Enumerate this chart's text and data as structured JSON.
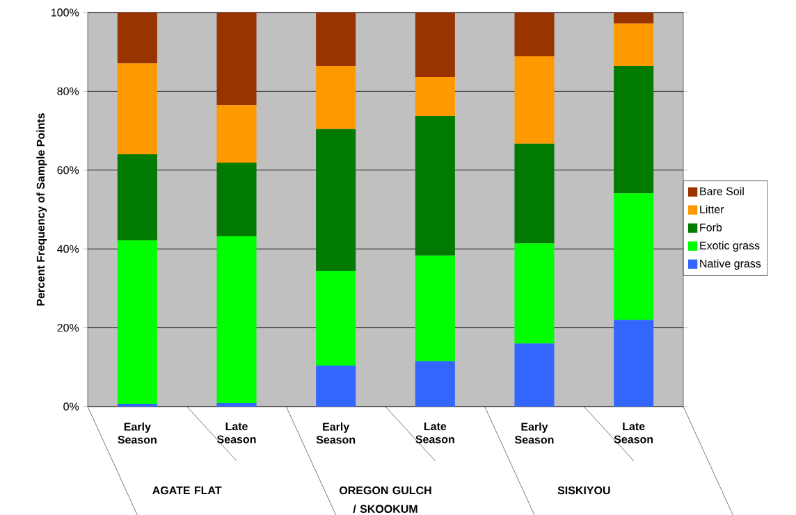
{
  "chart_data": {
    "type": "bar",
    "stacked": true,
    "ylabel": "Percent Frequency of Sample Points",
    "categories": [
      "Early Season",
      "Late Season",
      "Early Season",
      "Late Season",
      "Early Season",
      "Late Season"
    ],
    "annotations": [
      "AGATE FLAT",
      "OREGON GULCH / SKOOKUM",
      "SISKIYOU"
    ],
    "series": [
      {
        "name": "Native grass",
        "color": "#3366ff",
        "values": [
          0.7,
          0.9,
          10.4,
          11.5,
          16.0,
          22.0
        ]
      },
      {
        "name": "Exotic grass",
        "color": "#00ff00",
        "values": [
          41.5,
          42.3,
          24.0,
          26.8,
          25.4,
          32.1
        ]
      },
      {
        "name": "Forb",
        "color": "#007a00",
        "values": [
          21.8,
          18.7,
          36.0,
          35.4,
          25.3,
          32.3
        ]
      },
      {
        "name": "Litter",
        "color": "#ff9900",
        "values": [
          23.1,
          14.6,
          16.0,
          9.9,
          22.2,
          10.8
        ]
      },
      {
        "name": "Bare Soil",
        "color": "#993300",
        "values": [
          12.9,
          23.5,
          13.6,
          16.4,
          11.1,
          2.8
        ]
      }
    ],
    "ylim": [
      0,
      100
    ],
    "yticks": [
      {
        "value": 0,
        "label": "0%"
      },
      {
        "value": 20,
        "label": "20%"
      },
      {
        "value": 40,
        "label": "40%"
      },
      {
        "value": 60,
        "label": "60%"
      },
      {
        "value": 80,
        "label": "80%"
      },
      {
        "value": 100,
        "label": "100%"
      }
    ],
    "grid": "y",
    "legend": "right"
  }
}
